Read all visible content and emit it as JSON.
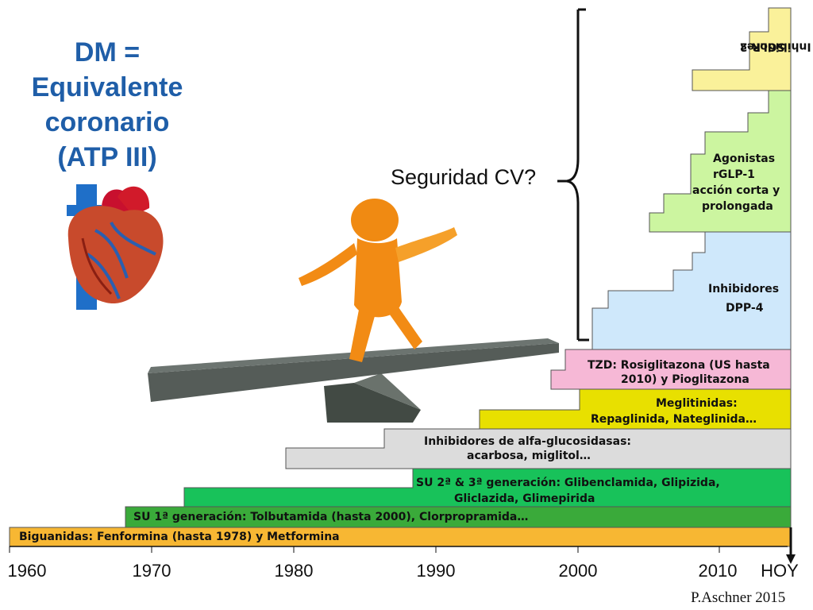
{
  "title": {
    "line1": "DM =",
    "line2": "Equivalente",
    "line3": "coronario",
    "line4": "(ATP III)"
  },
  "question": "Seguridad CV?",
  "credit": "P.Aschner 2015",
  "axis": {
    "ticks": [
      "1960",
      "1970",
      "1980",
      "1990",
      "2000",
      "2010",
      "HOY"
    ]
  },
  "colors": {
    "biguanidas": "#f7b733",
    "su1": "#3aaa3a",
    "su2": "#18c25a",
    "alfa": "#dcdcdc",
    "meglitinidas": "#e8e000",
    "tzd": "#f6b8d6",
    "dpp4": "#cfe8fb",
    "glp1": "#ccf5a0",
    "sglt2": "#faf19a",
    "title_blue": "#1f5ea8"
  },
  "bands": {
    "biguanidas": "Biguanidas: Fenformina (hasta 1978) y Metformina",
    "su1": "SU 1ª generación: Tolbutamida (hasta 2000), Clorpropramida…",
    "su2_line1": "SU 2ª & 3ª generación:  Glibenclamida, Glipizida,",
    "su2_line2": "Gliclazida, Glimepirida",
    "alfa_line1": "Inhibidores de alfa-glucosidasas:",
    "alfa_line2": "acarbosa, miglitol…",
    "meglitinidas_line1": "Meglitinidas:",
    "meglitinidas_line2": "Repaglinida, Nateglinida…",
    "tzd_line1": "TZD: Rosiglitazona (US hasta",
    "tzd_line2": "2010) y Pioglitazona",
    "dpp4_line1": "Inhibidores",
    "dpp4_line2": "DPP-4",
    "glp1_line1": "Agonistas",
    "glp1_line2": "rGLP-1",
    "glp1_line3": "acción corta y",
    "glp1_line4": "prolongada",
    "sglt2_line1": "Inhibidores",
    "sglt2_line2": "SGLR-2"
  }
}
